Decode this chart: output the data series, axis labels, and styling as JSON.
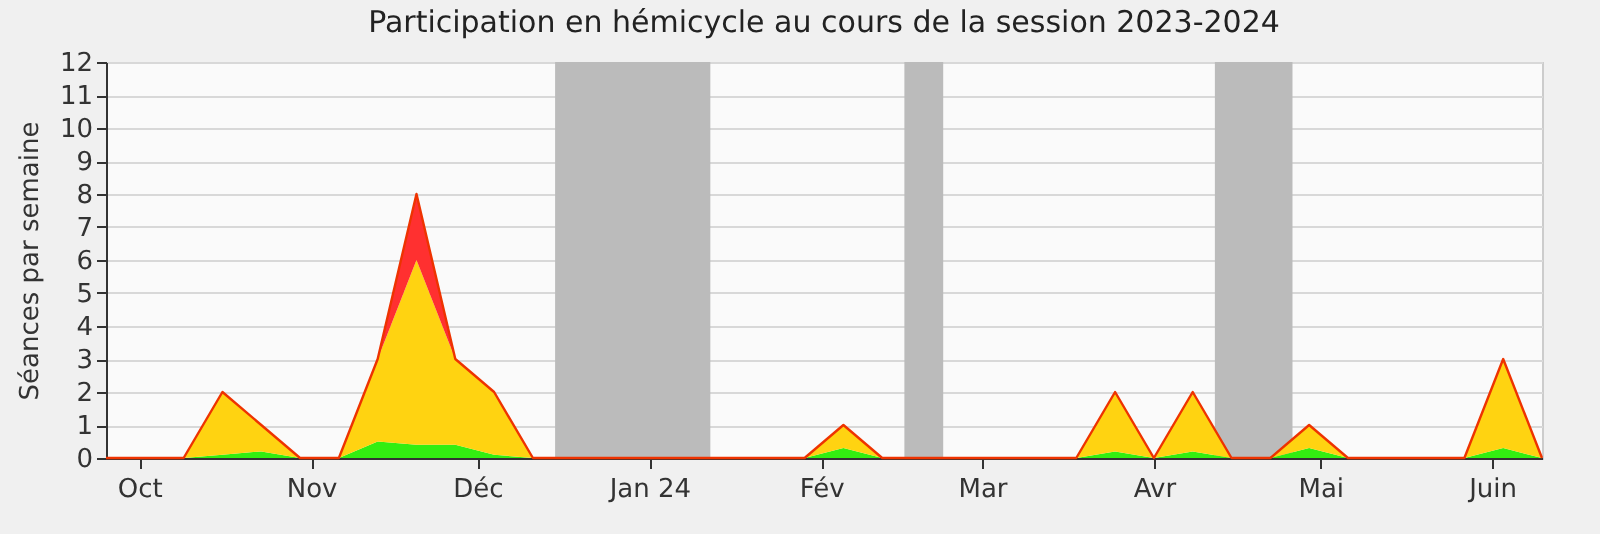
{
  "chart_data": {
    "type": "area",
    "stacked": true,
    "title": "Participation en hémicycle au cours de la session 2023-2024",
    "ylabel": "Séances par semaine",
    "x": [
      "2023-09-25",
      "2023-10-02",
      "2023-10-09",
      "2023-10-16",
      "2023-10-23",
      "2023-10-30",
      "2023-11-06",
      "2023-11-13",
      "2023-11-20",
      "2023-11-27",
      "2023-12-04",
      "2023-12-11",
      "2023-12-18",
      "2023-12-25",
      "2024-01-01",
      "2024-01-08",
      "2024-01-15",
      "2024-01-22",
      "2024-01-29",
      "2024-02-05",
      "2024-02-12",
      "2024-02-19",
      "2024-02-26",
      "2024-03-04",
      "2024-03-11",
      "2024-03-18",
      "2024-03-25",
      "2024-04-01",
      "2024-04-08",
      "2024-04-15",
      "2024-04-22",
      "2024-04-29",
      "2024-05-06",
      "2024-05-13",
      "2024-05-20",
      "2024-05-27",
      "2024-06-03",
      "2024-06-10"
    ],
    "series": [
      {
        "color": "#33ee11",
        "values": [
          0,
          0,
          0,
          0.1,
          0.2,
          0,
          0,
          0.5,
          0.4,
          0.4,
          0.1,
          0,
          0,
          0,
          0,
          0,
          0,
          0,
          0,
          0.3,
          0,
          0,
          0,
          0,
          0,
          0,
          0.2,
          0,
          0.2,
          0,
          0,
          0.3,
          0,
          0,
          0,
          0,
          0.3,
          0
        ]
      },
      {
        "color": "#ffd311",
        "values": [
          0,
          0,
          0,
          1.9,
          0.8,
          0,
          0,
          2.5,
          5.6,
          2.6,
          1.9,
          0,
          0,
          0,
          0,
          0,
          0,
          0,
          0,
          0.7,
          0,
          0,
          0,
          0,
          0,
          0,
          1.8,
          0,
          1.8,
          0,
          0,
          0.7,
          0,
          0,
          0,
          0,
          2.7,
          0
        ]
      },
      {
        "color": "#ff3030",
        "values": [
          0,
          0,
          0,
          0,
          0,
          0,
          0,
          0,
          2,
          0,
          0,
          0,
          0,
          0,
          0,
          0,
          0,
          0,
          0,
          0,
          0,
          0,
          0,
          0,
          0,
          0,
          0,
          0,
          0,
          0,
          0,
          0,
          0,
          0,
          0,
          0,
          0,
          0
        ]
      }
    ],
    "xlim": [
      "2023-09-25",
      "2024-06-10"
    ],
    "xticks": [
      {
        "value": "2023-10-01",
        "label": "Oct"
      },
      {
        "value": "2023-11-01",
        "label": "Nov"
      },
      {
        "value": "2023-12-01",
        "label": "Déc"
      },
      {
        "value": "2024-01-01",
        "label": "Jan 24"
      },
      {
        "value": "2024-02-01",
        "label": "Fév"
      },
      {
        "value": "2024-03-01",
        "label": "Mar"
      },
      {
        "value": "2024-04-01",
        "label": "Avr"
      },
      {
        "value": "2024-05-01",
        "label": "Mai"
      },
      {
        "value": "2024-06-01",
        "label": "Juin"
      }
    ],
    "ylim": [
      0,
      12
    ],
    "yticks": [
      0,
      1,
      2,
      3,
      4,
      5,
      6,
      7,
      8,
      9,
      10,
      11,
      12
    ],
    "grid": "y",
    "bands": [
      {
        "axis": "x",
        "from": "2023-12-15",
        "to": "2024-01-12",
        "color": "#bbbbbb"
      },
      {
        "axis": "x",
        "from": "2024-02-16",
        "to": "2024-02-23",
        "color": "#bbbbbb"
      },
      {
        "axis": "x",
        "from": "2024-04-12",
        "to": "2024-04-26",
        "color": "#bbbbbb"
      }
    ]
  }
}
